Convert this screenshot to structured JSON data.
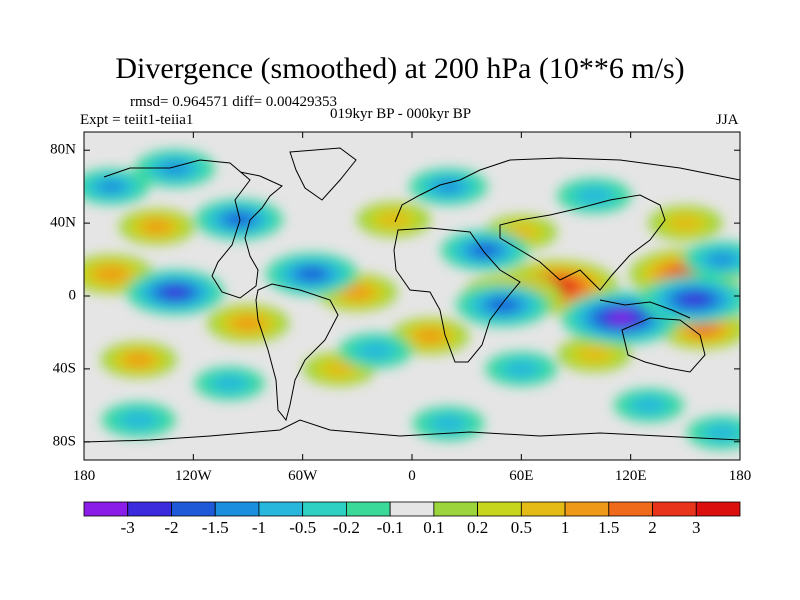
{
  "title": "Divergence (smoothed) at 200 hPa (10**6 m/s)",
  "stats": "rmsd= 0.964571 diff= 0.00429353",
  "experiment": "Expt = teiit1-teiia1",
  "period": "019kyr BP - 000kyr BP",
  "season": "JJA",
  "x_ticks": [
    "180",
    "120W",
    "60W",
    "0",
    "60E",
    "120E",
    "180"
  ],
  "y_ticks": [
    "80N",
    "40N",
    "0",
    "40S",
    "80S"
  ],
  "colorbar": {
    "labels": [
      "-3",
      "-2",
      "-1.5",
      "-1",
      "-0.5",
      "-0.2",
      "-0.1",
      "0.1",
      "0.2",
      "0.5",
      "1",
      "1.5",
      "2",
      "3"
    ],
    "colors": [
      "#8a1ee8",
      "#3c2bdc",
      "#1f59d8",
      "#1b8fdd",
      "#27b6dc",
      "#2dd0c2",
      "#3ad99a",
      "#e5e5e5",
      "#9bd43b",
      "#c8d51e",
      "#e3bb14",
      "#ee9a18",
      "#ef6b1b",
      "#e8341b",
      "#dc0f0f"
    ]
  },
  "chart_data": {
    "type": "heatmap",
    "title": "Divergence (smoothed) at 200 hPa (10**6 m/s)",
    "xlabel": "",
    "ylabel": "",
    "xlim": [
      -180,
      180
    ],
    "ylim": [
      -90,
      90
    ],
    "lon_ticks": [
      -180,
      -120,
      -60,
      0,
      60,
      120,
      180
    ],
    "lat_ticks": [
      80,
      40,
      0,
      -40,
      -80
    ],
    "levels": [
      -3,
      -2,
      -1.5,
      -1,
      -0.5,
      -0.2,
      -0.1,
      0.1,
      0.2,
      0.5,
      1,
      1.5,
      2,
      3
    ],
    "features": [
      {
        "lon": 80,
        "lat": 5,
        "value": 3.2
      },
      {
        "lon": 150,
        "lat": 12,
        "value": 2.8
      },
      {
        "lon": 55,
        "lat": 0,
        "value": 2.2
      },
      {
        "lon": 160,
        "lat": -18,
        "value": 1.6
      },
      {
        "lon": -165,
        "lat": 12,
        "value": 1.4
      },
      {
        "lon": -90,
        "lat": -15,
        "value": 1.3
      },
      {
        "lon": -30,
        "lat": 2,
        "value": 1.2
      },
      {
        "lon": 10,
        "lat": -22,
        "value": 1.1
      },
      {
        "lon": -140,
        "lat": 38,
        "value": 1.0
      },
      {
        "lon": -10,
        "lat": 42,
        "value": 0.9
      },
      {
        "lon": 150,
        "lat": 40,
        "value": 0.9
      },
      {
        "lon": 60,
        "lat": 35,
        "value": 0.8
      },
      {
        "lon": -150,
        "lat": -35,
        "value": 1.0
      },
      {
        "lon": 100,
        "lat": -32,
        "value": 0.9
      },
      {
        "lon": -40,
        "lat": -40,
        "value": 0.8
      },
      {
        "lon": 115,
        "lat": -12,
        "value": -3.2
      },
      {
        "lon": 155,
        "lat": -2,
        "value": -2.6
      },
      {
        "lon": -130,
        "lat": 2,
        "value": -2.1
      },
      {
        "lon": -55,
        "lat": 12,
        "value": -1.8
      },
      {
        "lon": 50,
        "lat": -5,
        "value": -1.9
      },
      {
        "lon": 40,
        "lat": 25,
        "value": -1.6
      },
      {
        "lon": -95,
        "lat": 42,
        "value": -1.6
      },
      {
        "lon": -130,
        "lat": 70,
        "value": -1.2
      },
      {
        "lon": 20,
        "lat": 60,
        "value": -1.1
      },
      {
        "lon": 100,
        "lat": 55,
        "value": -0.9
      },
      {
        "lon": -165,
        "lat": 60,
        "value": -1.0
      },
      {
        "lon": -20,
        "lat": -30,
        "value": -0.9
      },
      {
        "lon": 60,
        "lat": -40,
        "value": -0.8
      },
      {
        "lon": -100,
        "lat": -48,
        "value": -0.7
      },
      {
        "lon": 130,
        "lat": -60,
        "value": -0.7
      },
      {
        "lon": -150,
        "lat": -68,
        "value": -0.9
      },
      {
        "lon": 20,
        "lat": -70,
        "value": -0.8
      },
      {
        "lon": 170,
        "lat": -75,
        "value": -0.7
      },
      {
        "lon": 170,
        "lat": 20,
        "value": -1.1
      }
    ]
  }
}
